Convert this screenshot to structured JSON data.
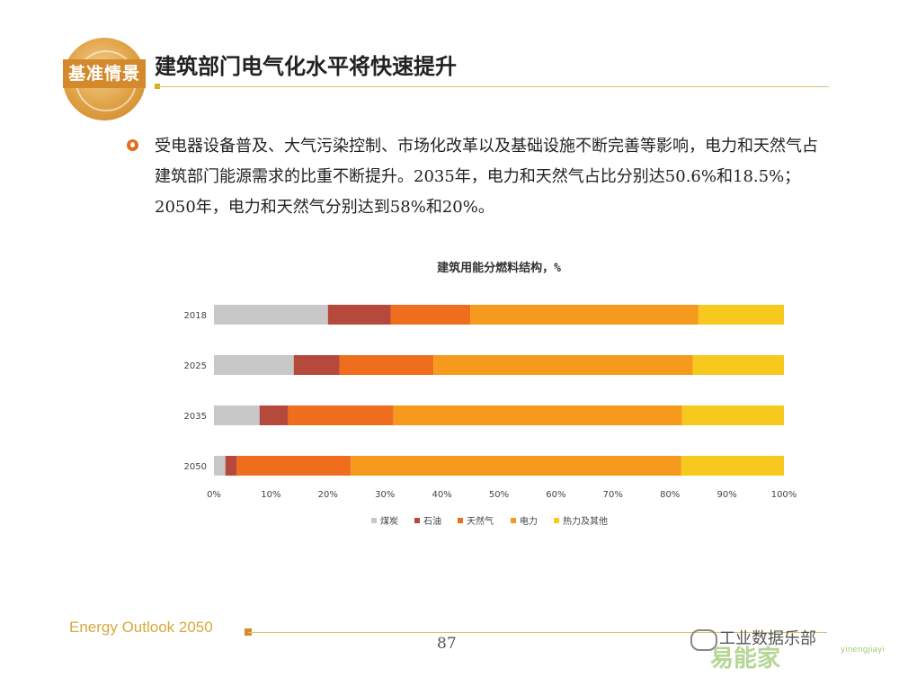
{
  "header": {
    "badge": "基准情景",
    "title": "建筑部门电气化水平将快速提升"
  },
  "bullet": {
    "text": "受电器设备普及、大气污染控制、市场化改革以及基础设施不断完善等影响，电力和天然气占建筑部门能源需求的比重不断提升。2035年，电力和天然气占比分别达50.6%和18.5%；2050年，电力和天然气分别达到58%和20%。"
  },
  "footer": {
    "report": "Energy Outlook 2050",
    "page": "87"
  },
  "watermark": {
    "brand": "工业数据乐部",
    "site": "易能家",
    "url": "yinengjiayi"
  },
  "colors": {
    "coal": "#c8c8c8",
    "oil": "#b54a3c",
    "gas": "#ee6e1e",
    "electricity": "#f59a1c",
    "heat": "#f7c81e",
    "accent": "#d6b020"
  },
  "chart_data": {
    "type": "bar",
    "orientation": "horizontal",
    "stacked": "percent",
    "title": "建筑用能分燃料结构，%",
    "categories": [
      "2018",
      "2025",
      "2035",
      "2050"
    ],
    "series": [
      {
        "name": "煤炭",
        "color": "#c8c8c8",
        "values": [
          20,
          14,
          8,
          2
        ]
      },
      {
        "name": "石油",
        "color": "#b54a3c",
        "values": [
          11,
          8,
          5,
          2
        ]
      },
      {
        "name": "天然气",
        "color": "#ee6e1e",
        "values": [
          14,
          16.5,
          18.5,
          20
        ]
      },
      {
        "name": "电力",
        "color": "#f59a1c",
        "values": [
          40,
          45.5,
          50.6,
          58
        ]
      },
      {
        "name": "热力及其他",
        "color": "#f7c81e",
        "values": [
          15,
          16,
          17.9,
          18
        ]
      }
    ],
    "xlim": [
      0,
      100
    ],
    "xticks": [
      "0%",
      "10%",
      "20%",
      "30%",
      "40%",
      "50%",
      "60%",
      "70%",
      "80%",
      "90%",
      "100%"
    ],
    "legend_position": "bottom",
    "grid": false
  }
}
